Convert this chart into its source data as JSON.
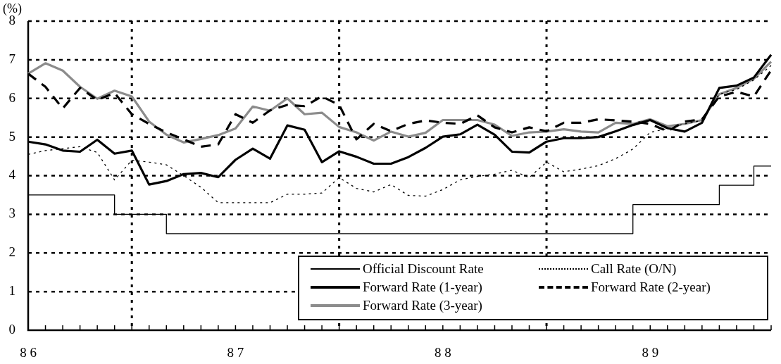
{
  "chart_data": {
    "type": "line",
    "ylabel": "(%)",
    "categories": [
      "8 6",
      null,
      null,
      null,
      null,
      null,
      null,
      null,
      null,
      null,
      null,
      null,
      "8 7",
      null,
      null,
      null,
      null,
      null,
      null,
      null,
      null,
      null,
      null,
      null,
      "8 8",
      null,
      null,
      null,
      null,
      null,
      null,
      null,
      null,
      null,
      null,
      null,
      "8 9",
      null,
      null,
      null,
      null,
      null,
      null,
      null
    ],
    "series": [
      {
        "name": "Official Discount Rate",
        "type": "step",
        "color": "#000000",
        "line_style": "solid",
        "values": [
          3.5,
          3.5,
          3.5,
          3.5,
          3.5,
          3.0,
          3.0,
          3.0,
          2.5,
          2.5,
          2.5,
          2.5,
          2.5,
          2.5,
          2.5,
          2.5,
          2.5,
          2.5,
          2.5,
          2.5,
          2.5,
          2.5,
          2.5,
          2.5,
          2.5,
          2.5,
          2.5,
          2.5,
          2.5,
          2.5,
          2.5,
          2.5,
          2.5,
          2.5,
          2.5,
          3.25,
          3.25,
          3.25,
          3.25,
          3.25,
          3.75,
          3.75,
          4.25,
          4.25
        ]
      },
      {
        "name": "Call Rate (O/N)",
        "color": "#000000",
        "line_style": "dotted",
        "values": [
          4.55,
          4.65,
          4.7,
          4.75,
          4.6,
          3.89,
          4.4,
          4.35,
          4.28,
          4.0,
          3.7,
          3.3,
          3.3,
          3.3,
          3.3,
          3.52,
          3.52,
          3.55,
          3.95,
          3.67,
          3.58,
          3.77,
          3.49,
          3.47,
          3.64,
          3.89,
          3.98,
          4.04,
          4.14,
          3.95,
          4.35,
          4.1,
          4.17,
          4.26,
          4.44,
          4.69,
          5.12,
          5.22,
          5.34,
          5.43,
          6.11,
          6.23,
          6.48,
          6.85
        ]
      },
      {
        "name": "Forward Rate (1-year)",
        "color": "#000000",
        "line_style": "solid",
        "values": [
          4.88,
          4.81,
          4.65,
          4.62,
          4.93,
          4.57,
          4.65,
          3.77,
          3.86,
          4.04,
          4.07,
          3.96,
          4.41,
          4.7,
          4.44,
          5.3,
          5.19,
          4.35,
          4.63,
          4.49,
          4.31,
          4.31,
          4.48,
          4.72,
          5.01,
          5.07,
          5.32,
          5.06,
          4.62,
          4.6,
          4.88,
          4.97,
          4.97,
          5.0,
          5.15,
          5.31,
          5.44,
          5.23,
          5.14,
          5.37,
          6.27,
          6.33,
          6.54,
          7.13
        ]
      },
      {
        "name": "Forward Rate (2-year)",
        "color": "#000000",
        "line_style": "dashed",
        "values": [
          6.64,
          6.3,
          5.74,
          6.27,
          5.96,
          6.14,
          5.59,
          5.34,
          5.12,
          4.94,
          4.75,
          4.81,
          5.59,
          5.37,
          5.69,
          5.83,
          5.8,
          6.05,
          5.83,
          4.94,
          5.34,
          5.15,
          5.34,
          5.43,
          5.37,
          5.34,
          5.56,
          5.25,
          5.12,
          5.25,
          5.15,
          5.37,
          5.37,
          5.46,
          5.43,
          5.4,
          5.34,
          5.15,
          5.4,
          5.46,
          6.05,
          6.17,
          6.05,
          6.73
        ]
      },
      {
        "name": "Forward Rate (3-year)",
        "color": "#8c8c8c",
        "line_style": "solid",
        "values": [
          6.64,
          6.91,
          6.72,
          6.3,
          5.99,
          6.2,
          6.05,
          5.4,
          5.06,
          4.86,
          4.95,
          5.05,
          5.22,
          5.79,
          5.68,
          6.0,
          5.59,
          5.63,
          5.26,
          5.12,
          4.91,
          5.14,
          5.01,
          5.11,
          5.44,
          5.44,
          5.44,
          5.32,
          5.03,
          5.12,
          5.14,
          5.2,
          5.14,
          5.12,
          5.37,
          5.34,
          5.46,
          5.28,
          5.34,
          5.44,
          6.11,
          6.27,
          6.51,
          6.95
        ]
      }
    ],
    "ylim": [
      0,
      8
    ],
    "yticks": [
      0,
      1,
      2,
      3,
      4,
      5,
      6,
      7,
      8
    ],
    "grid": true,
    "legend": "bottom right",
    "marker": "none"
  }
}
